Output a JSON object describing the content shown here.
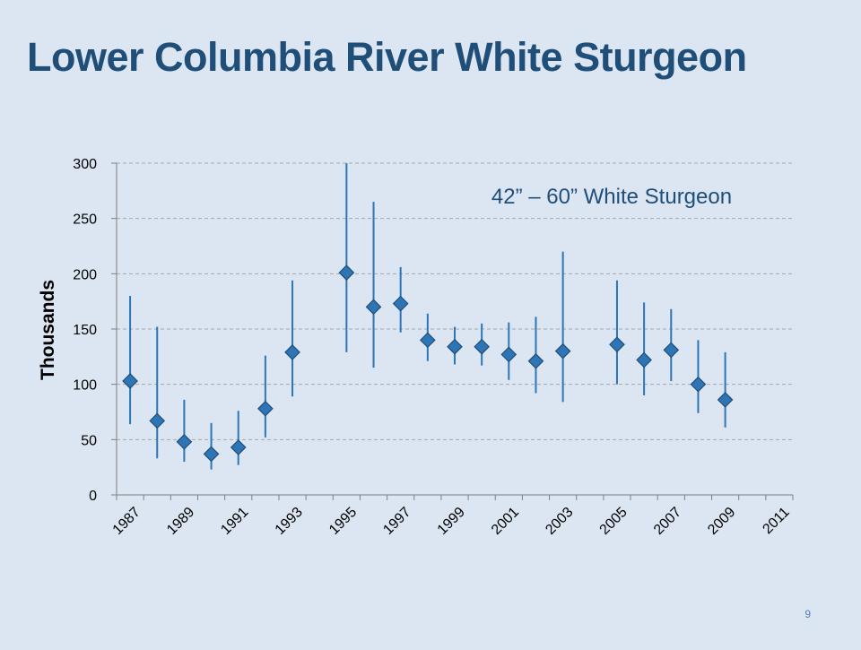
{
  "slide": {
    "title": "Lower Columbia River White Sturgeon",
    "page_number": "9"
  },
  "chart_data": {
    "type": "scatter",
    "title": "",
    "annotation": "42” – 60” White Sturgeon",
    "xlabel": "",
    "ylabel": "Thousands",
    "ylim": [
      0,
      300
    ],
    "yticks": [
      0,
      50,
      100,
      150,
      200,
      250,
      300
    ],
    "xlim": [
      1986.5,
      2011.5
    ],
    "xticks": [
      1987,
      1989,
      1991,
      1993,
      1995,
      1997,
      1999,
      2001,
      2003,
      2005,
      2007,
      2009,
      2011
    ],
    "grid": true,
    "series": [
      {
        "marker": "diamond",
        "color": "#2e75b6",
        "errorbar_color": "#2e75b6",
        "points": [
          {
            "x": 1987,
            "y": 103,
            "low": 64,
            "high": 180
          },
          {
            "x": 1988,
            "y": 67,
            "low": 33,
            "high": 152
          },
          {
            "x": 1989,
            "y": 48,
            "low": 30,
            "high": 86
          },
          {
            "x": 1990,
            "y": 37,
            "low": 23,
            "high": 65
          },
          {
            "x": 1991,
            "y": 43,
            "low": 27,
            "high": 76
          },
          {
            "x": 1992,
            "y": 78,
            "low": 52,
            "high": 126
          },
          {
            "x": 1993,
            "y": 129,
            "low": 89,
            "high": 194
          },
          {
            "x": 1995,
            "y": 201,
            "low": 129,
            "high": 300
          },
          {
            "x": 1996,
            "y": 170,
            "low": 115,
            "high": 265
          },
          {
            "x": 1997,
            "y": 173,
            "low": 147,
            "high": 206
          },
          {
            "x": 1998,
            "y": 140,
            "low": 121,
            "high": 164
          },
          {
            "x": 1999,
            "y": 134,
            "low": 118,
            "high": 152
          },
          {
            "x": 2000,
            "y": 134,
            "low": 117,
            "high": 155
          },
          {
            "x": 2001,
            "y": 127,
            "low": 104,
            "high": 156
          },
          {
            "x": 2002,
            "y": 121,
            "low": 92,
            "high": 161
          },
          {
            "x": 2003,
            "y": 130,
            "low": 84,
            "high": 220
          },
          {
            "x": 2005,
            "y": 136,
            "low": 100,
            "high": 194
          },
          {
            "x": 2006,
            "y": 122,
            "low": 90,
            "high": 174
          },
          {
            "x": 2007,
            "y": 131,
            "low": 103,
            "high": 168
          },
          {
            "x": 2008,
            "y": 100,
            "low": 74,
            "high": 140
          },
          {
            "x": 2009,
            "y": 86,
            "low": 61,
            "high": 129
          }
        ]
      }
    ]
  }
}
